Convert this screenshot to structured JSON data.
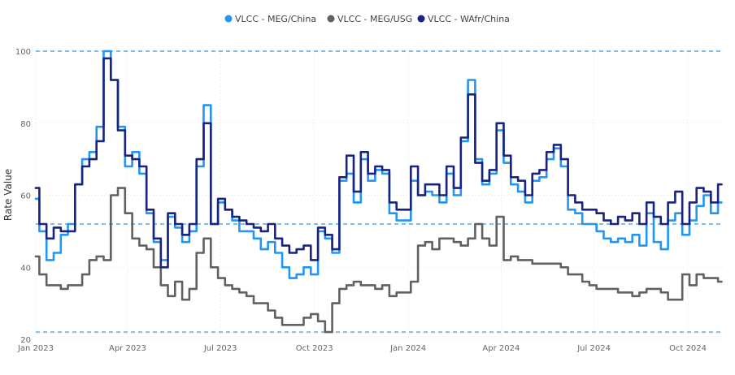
{
  "chart_data": {
    "type": "line",
    "ylabel": "Rate Value",
    "ylim": [
      20,
      100
    ],
    "yticks": [
      "20",
      "40",
      "60",
      "80",
      "100"
    ],
    "xlim": [
      "2023-01-01",
      "2024-11-05"
    ],
    "xticks": [
      {
        "date": "2023-01-01",
        "label": "Jan 2023"
      },
      {
        "date": "2023-04-01",
        "label": "Apr 2023"
      },
      {
        "date": "2023-07-01",
        "label": "Jul 2023"
      },
      {
        "date": "2023-10-01",
        "label": "Oct 2023"
      },
      {
        "date": "2024-01-01",
        "label": "Jan 2024"
      },
      {
        "date": "2024-04-01",
        "label": "Apr 2024"
      },
      {
        "date": "2024-07-01",
        "label": "Jul 2024"
      },
      {
        "date": "2024-10-01",
        "label": "Oct 2024"
      }
    ],
    "grid": true,
    "legend_position": "top-center",
    "reference_lines": [
      100,
      52,
      22
    ],
    "reference_color": "#7fbfef",
    "x": [
      "2023-01-01",
      "2023-01-08",
      "2023-01-15",
      "2023-01-22",
      "2023-01-29",
      "2023-02-05",
      "2023-02-12",
      "2023-02-19",
      "2023-02-26",
      "2023-03-05",
      "2023-03-12",
      "2023-03-19",
      "2023-03-26",
      "2023-04-02",
      "2023-04-09",
      "2023-04-16",
      "2023-04-23",
      "2023-04-30",
      "2023-05-07",
      "2023-05-14",
      "2023-05-21",
      "2023-05-28",
      "2023-06-04",
      "2023-06-11",
      "2023-06-18",
      "2023-06-25",
      "2023-07-02",
      "2023-07-09",
      "2023-07-16",
      "2023-07-23",
      "2023-07-30",
      "2023-08-06",
      "2023-08-13",
      "2023-08-20",
      "2023-08-27",
      "2023-09-03",
      "2023-09-10",
      "2023-09-17",
      "2023-09-24",
      "2023-10-01",
      "2023-10-08",
      "2023-10-15",
      "2023-10-22",
      "2023-10-29",
      "2023-11-05",
      "2023-11-12",
      "2023-11-19",
      "2023-11-26",
      "2023-12-03",
      "2023-12-10",
      "2023-12-17",
      "2023-12-24",
      "2023-12-31",
      "2024-01-07",
      "2024-01-14",
      "2024-01-21",
      "2024-01-28",
      "2024-02-04",
      "2024-02-11",
      "2024-02-18",
      "2024-02-25",
      "2024-03-03",
      "2024-03-10",
      "2024-03-17",
      "2024-03-24",
      "2024-03-31",
      "2024-04-07",
      "2024-04-14",
      "2024-04-21",
      "2024-04-28",
      "2024-05-05",
      "2024-05-12",
      "2024-05-19",
      "2024-05-26",
      "2024-06-02",
      "2024-06-09",
      "2024-06-16",
      "2024-06-23",
      "2024-06-30",
      "2024-07-07",
      "2024-07-14",
      "2024-07-21",
      "2024-07-28",
      "2024-08-04",
      "2024-08-11",
      "2024-08-18",
      "2024-08-25",
      "2024-09-01",
      "2024-09-08",
      "2024-09-15",
      "2024-09-22",
      "2024-09-29",
      "2024-10-06",
      "2024-10-13",
      "2024-10-20",
      "2024-10-27",
      "2024-11-03"
    ],
    "series": [
      {
        "name": "VLCC - MEG/China",
        "color": "#2196f3",
        "values": [
          59,
          50,
          42,
          44,
          49,
          52,
          63,
          70,
          72,
          79,
          100,
          92,
          79,
          68,
          72,
          66,
          55,
          47,
          42,
          54,
          51,
          47,
          50,
          68,
          85,
          52,
          58,
          56,
          53,
          50,
          50,
          48,
          45,
          47,
          44,
          40,
          37,
          38,
          40,
          38,
          50,
          48,
          44,
          64,
          66,
          58,
          70,
          64,
          67,
          66,
          55,
          53,
          53,
          64,
          60,
          61,
          60,
          58,
          66,
          60,
          75,
          92,
          70,
          63,
          66,
          78,
          69,
          63,
          61,
          58,
          64,
          65,
          70,
          73,
          68,
          56,
          55,
          52,
          52,
          50,
          48,
          47,
          48,
          47,
          49,
          46,
          55,
          47,
          45,
          53,
          55,
          49,
          53,
          57,
          60,
          55,
          58
        ]
      },
      {
        "name": "VLCC - MEG/USG",
        "color": "#616161",
        "values": [
          43,
          38,
          35,
          35,
          34,
          35,
          35,
          38,
          42,
          43,
          42,
          60,
          62,
          55,
          48,
          46,
          45,
          40,
          35,
          32,
          36,
          31,
          34,
          44,
          48,
          40,
          37,
          35,
          34,
          33,
          32,
          30,
          30,
          28,
          26,
          24,
          24,
          24,
          26,
          27,
          25,
          22,
          30,
          34,
          35,
          36,
          35,
          35,
          34,
          35,
          32,
          33,
          33,
          36,
          46,
          47,
          45,
          48,
          48,
          47,
          46,
          48,
          52,
          48,
          46,
          54,
          42,
          43,
          42,
          42,
          41,
          41,
          41,
          41,
          40,
          38,
          38,
          36,
          35,
          34,
          34,
          34,
          33,
          33,
          32,
          33,
          34,
          34,
          33,
          31,
          31,
          38,
          35,
          38,
          37,
          37,
          36
        ]
      },
      {
        "name": "VLCC - WAfr/China",
        "color": "#1a237e",
        "values": [
          62,
          52,
          48,
          51,
          50,
          50,
          63,
          68,
          70,
          75,
          98,
          92,
          78,
          71,
          70,
          68,
          56,
          48,
          40,
          55,
          52,
          49,
          52,
          70,
          80,
          52,
          59,
          56,
          54,
          53,
          52,
          51,
          50,
          52,
          48,
          46,
          44,
          45,
          46,
          42,
          51,
          49,
          45,
          65,
          71,
          61,
          72,
          66,
          68,
          67,
          58,
          56,
          56,
          68,
          60,
          63,
          63,
          60,
          68,
          62,
          76,
          88,
          69,
          64,
          67,
          80,
          71,
          65,
          64,
          60,
          66,
          67,
          72,
          74,
          70,
          60,
          58,
          56,
          56,
          55,
          53,
          52,
          54,
          53,
          55,
          52,
          58,
          54,
          52,
          58,
          61,
          52,
          58,
          62,
          61,
          58,
          63
        ]
      }
    ]
  }
}
